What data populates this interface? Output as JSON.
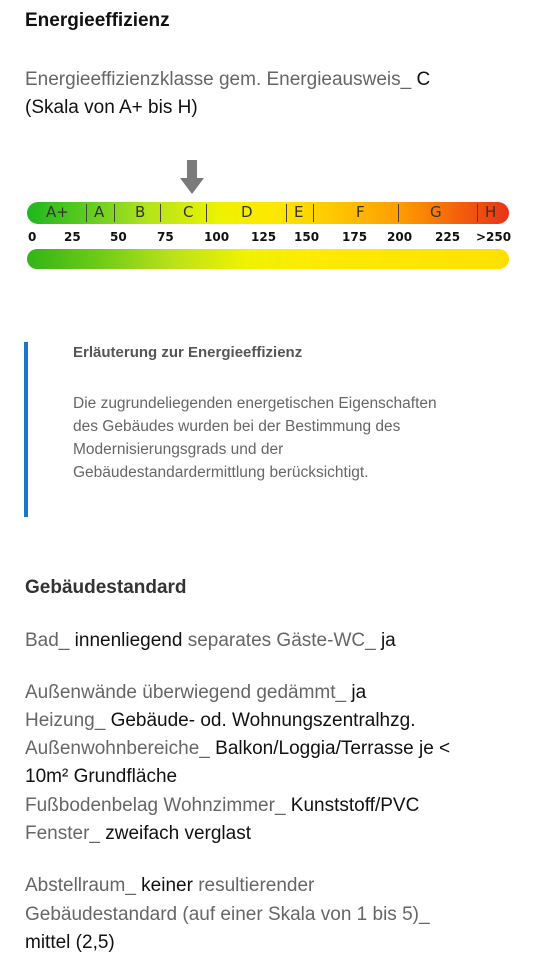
{
  "energy": {
    "title": "Energieeffizienz",
    "class_label": "Energieeffizienzklasse gem. Energieausweis_",
    "class_value": "C",
    "scale_note": "(Skala von A+ bis H)",
    "current_class": "C",
    "classes": [
      "A+",
      "A",
      "B",
      "C",
      "D",
      "E",
      "F",
      "G",
      "H"
    ],
    "ticks": [
      "0",
      "25",
      "50",
      "75",
      "100",
      "125",
      "150",
      "175",
      "200",
      "225",
      ">250"
    ]
  },
  "info": {
    "title": "Erläuterung zur Energieeffizienz",
    "lines": [
      "Die zugrundeliegenden energetischen Eigenschaften",
      "des Gebäudes wurden bei der Bestimmung des",
      "Modernisierungsgrads und der",
      "Gebäudestandardermittlung berücksichtigt."
    ]
  },
  "standard": {
    "title": "Gebäudestandard",
    "bad_label": "Bad_",
    "bad_value": "innenliegend",
    "guest_label": "separates Gäste-WC_",
    "guest_value": "ja",
    "walls_label": "Außenwände überwiegend gedämmt_",
    "walls_value": "ja",
    "heating_label": "Heizung_",
    "heating_value": "Gebäude- od. Wohnungszentralhzg.",
    "outdoor_label": "Außenwohnbereiche_",
    "outdoor_value_1": "Balkon/Loggia/Terrasse je <",
    "outdoor_value_2": "10m² Grundfläche",
    "floor_label": "Fußbodenbelag Wohnzimmer_",
    "floor_value": "Kunststoff/PVC",
    "window_label": "Fenster_",
    "window_value": "zweifach verglast",
    "storage_label": "Abstellraum_",
    "storage_value": "keiner",
    "result_label_1": "resultierender",
    "result_label_2": "Gebäudestandard (auf einer Skala von 1 bis 5)_",
    "result_value": "mittel (2,5)"
  }
}
